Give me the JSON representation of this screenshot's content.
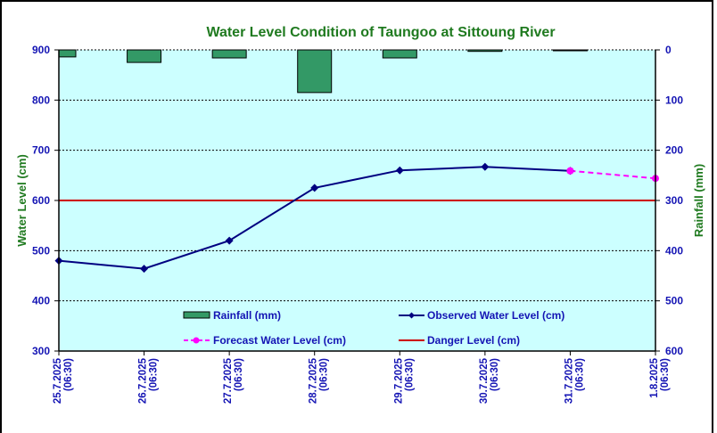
{
  "chart_data": {
    "type": "line",
    "title": "Water Level Condition of Taungoo at  Sittoung River",
    "ylabel": "Water Level (cm)",
    "y2label": "Rainfall (mm)",
    "ylim": [
      300,
      900
    ],
    "y2lim": [
      600,
      0
    ],
    "yticks": [
      "900",
      "800",
      "700",
      "600",
      "500",
      "400",
      "300"
    ],
    "y2ticks": [
      "0",
      "100",
      "200",
      "300",
      "400",
      "500",
      "600"
    ],
    "categories": [
      [
        "25.7.2025",
        "(06:30)"
      ],
      [
        "26.7.2025",
        "(06:30)"
      ],
      [
        "27.7.2025",
        "(06:30)"
      ],
      [
        "28.7.2025",
        "(06:30)"
      ],
      [
        "29.7.2025",
        "(06:30)"
      ],
      [
        "30.7.2025",
        "(06:30)"
      ],
      [
        "31.7.2025",
        "(06:30)"
      ],
      [
        "1.8.2025",
        "(06:30)"
      ]
    ],
    "series": [
      {
        "name": "Rainfall (mm)",
        "type": "bar",
        "axis": "right",
        "color": "#339966",
        "values": [
          14,
          25,
          16,
          85,
          16,
          3,
          1,
          null
        ]
      },
      {
        "name": "Observed Water Level (cm)",
        "type": "line",
        "marker": "diamond",
        "color": "#000080",
        "values": [
          480,
          464,
          520,
          625,
          660,
          667,
          659,
          null
        ]
      },
      {
        "name": "Forecast Water Level (cm)",
        "type": "line",
        "dashed": true,
        "marker": "circle",
        "color": "#ff00ff",
        "values": [
          null,
          null,
          null,
          null,
          null,
          null,
          659,
          644
        ]
      },
      {
        "name": "Danger Level (cm)",
        "type": "line",
        "color": "#cc0000",
        "constant": 600
      }
    ],
    "grid": true,
    "legend": "bottom-center",
    "plot_background": "#ccffff"
  }
}
